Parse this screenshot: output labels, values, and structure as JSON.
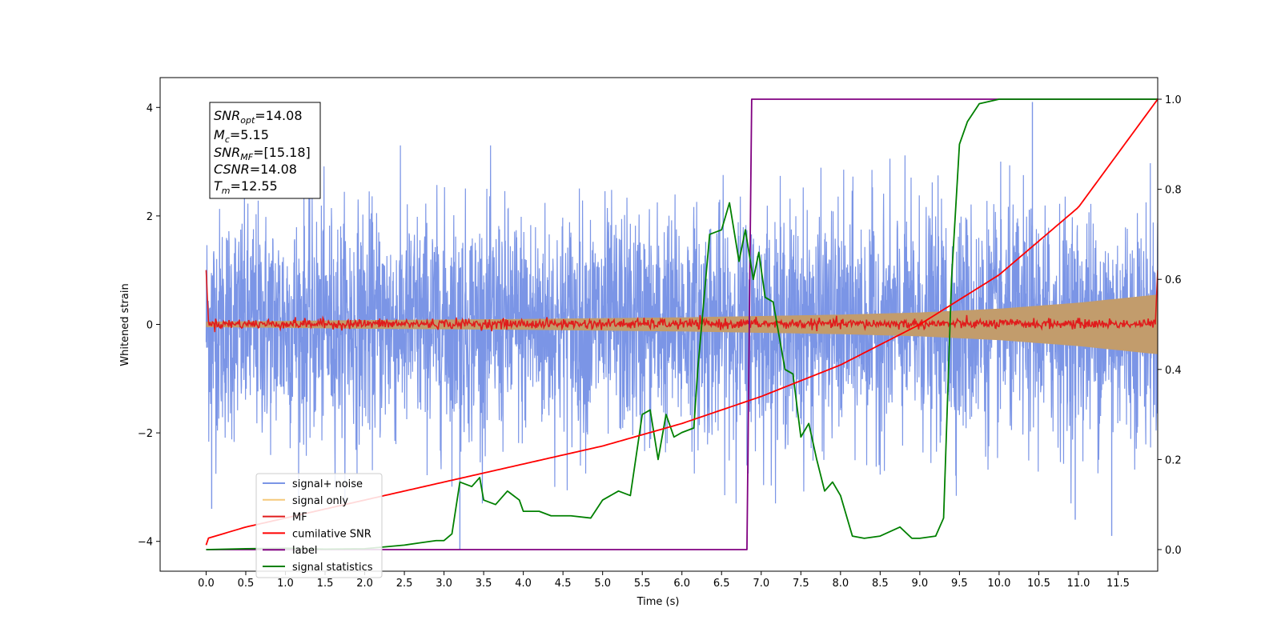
{
  "chart_data": {
    "type": "line",
    "xlabel": "Time (s)",
    "ylabel": "Whitened strain",
    "xlim": [
      -0.58,
      12.0
    ],
    "ylim_left": [
      -4.55,
      4.55
    ],
    "ylim_right": [
      -0.048,
      1.048
    ],
    "x_ticks": [
      0.0,
      0.5,
      1.0,
      1.5,
      2.0,
      2.5,
      3.0,
      3.5,
      4.0,
      4.5,
      5.0,
      5.5,
      6.0,
      6.5,
      7.0,
      7.5,
      8.0,
      8.5,
      9.0,
      9.5,
      10.0,
      10.5,
      11.0,
      11.5
    ],
    "x_tick_labels": [
      "0.0",
      "0.5",
      "1.0",
      "1.5",
      "2.0",
      "2.5",
      "3.0",
      "3.5",
      "4.0",
      "4.5",
      "5.0",
      "5.5",
      "6.0",
      "6.5",
      "7.0",
      "7.5",
      "8.0",
      "8.5",
      "9.0",
      "9.5",
      "10.0",
      "10.5",
      "11.0",
      "11.5"
    ],
    "y_ticks_left": [
      -4,
      -2,
      0,
      2,
      4
    ],
    "y_tick_labels_left": [
      "−4",
      "−2",
      "0",
      "2",
      "4"
    ],
    "y_ticks_right": [
      0.0,
      0.2,
      0.4,
      0.6,
      0.8,
      1.0
    ],
    "y_tick_labels_right": [
      "0.0",
      "0.2",
      "0.4",
      "0.6",
      "0.8",
      "1.0"
    ],
    "grid": false,
    "legend_position": "lower-left",
    "annotation": {
      "snr_opt": "14.08",
      "mc": "5.15",
      "snr_mf": "[15.18]",
      "csnr": "14.08",
      "tm": "12.55"
    },
    "series": [
      {
        "name": "signal+ noise",
        "axis": "left",
        "color": "#7b95e6",
        "description_of_values": "dense white noise, roughly ±2.5, occasional spikes to ~±3.5",
        "x_range": [
          0.0,
          12.0
        ],
        "amplitude_typical": 2.5,
        "notable_spikes": [
          [
            0.07,
            -3.4
          ],
          [
            3.2,
            -4.15
          ],
          [
            6.82,
            -2.6
          ],
          [
            10.42,
            4.1
          ],
          [
            10.96,
            -3.6
          ],
          [
            11.42,
            -3.9
          ]
        ]
      },
      {
        "name": "signal only",
        "axis": "left",
        "color": "#f5c97a",
        "description_of_values": "chirp envelope growing from ±0.05 at t=0 to ±0.55 at t=12",
        "envelope": [
          [
            0.0,
            0.05
          ],
          [
            2.0,
            0.08
          ],
          [
            4.0,
            0.1
          ],
          [
            6.0,
            0.13
          ],
          [
            8.0,
            0.18
          ],
          [
            9.0,
            0.22
          ],
          [
            10.0,
            0.29
          ],
          [
            11.0,
            0.4
          ],
          [
            12.0,
            0.55
          ]
        ]
      },
      {
        "name": "MF",
        "axis": "left",
        "color": "#e01c1c",
        "description_of_values": "matched filter output, near 0 with small noise, edges at 1.0",
        "values": [
          [
            0.0,
            1.0
          ],
          [
            0.03,
            0.05
          ],
          [
            1.0,
            0.05
          ],
          [
            3.0,
            0.0
          ],
          [
            5.0,
            0.02
          ],
          [
            7.0,
            0.0
          ],
          [
            9.0,
            0.03
          ],
          [
            11.0,
            0.0
          ],
          [
            11.97,
            0.0
          ],
          [
            12.0,
            1.0
          ]
        ]
      },
      {
        "name": "cumilative SNR",
        "axis": "right",
        "color": "#ff0000",
        "values": [
          [
            0.0,
            0.01
          ],
          [
            0.02,
            0.025
          ],
          [
            0.5,
            0.05
          ],
          [
            1.0,
            0.07
          ],
          [
            2.0,
            0.11
          ],
          [
            3.0,
            0.15
          ],
          [
            4.0,
            0.19
          ],
          [
            5.0,
            0.23
          ],
          [
            6.0,
            0.28
          ],
          [
            7.0,
            0.34
          ],
          [
            8.0,
            0.41
          ],
          [
            9.0,
            0.5
          ],
          [
            10.0,
            0.61
          ],
          [
            11.0,
            0.76
          ],
          [
            12.0,
            1.0
          ]
        ]
      },
      {
        "name": "label",
        "axis": "right",
        "color": "#800080",
        "values": [
          [
            0.0,
            0.0
          ],
          [
            6.82,
            0.0
          ],
          [
            6.88,
            1.0
          ],
          [
            12.0,
            1.0
          ]
        ]
      },
      {
        "name": "signal statistics",
        "axis": "right",
        "color": "#008000",
        "values": [
          [
            0.0,
            0.0
          ],
          [
            0.5,
            0.002
          ],
          [
            1.0,
            0.003
          ],
          [
            1.5,
            0.001
          ],
          [
            2.0,
            0.002
          ],
          [
            2.5,
            0.01
          ],
          [
            2.7,
            0.015
          ],
          [
            2.9,
            0.02
          ],
          [
            3.0,
            0.02
          ],
          [
            3.1,
            0.035
          ],
          [
            3.2,
            0.15
          ],
          [
            3.35,
            0.14
          ],
          [
            3.45,
            0.16
          ],
          [
            3.5,
            0.11
          ],
          [
            3.65,
            0.1
          ],
          [
            3.8,
            0.13
          ],
          [
            3.95,
            0.11
          ],
          [
            4.0,
            0.085
          ],
          [
            4.2,
            0.085
          ],
          [
            4.35,
            0.075
          ],
          [
            4.6,
            0.075
          ],
          [
            4.85,
            0.07
          ],
          [
            5.0,
            0.11
          ],
          [
            5.2,
            0.13
          ],
          [
            5.35,
            0.12
          ],
          [
            5.5,
            0.3
          ],
          [
            5.6,
            0.31
          ],
          [
            5.7,
            0.2
          ],
          [
            5.8,
            0.3
          ],
          [
            5.9,
            0.25
          ],
          [
            6.0,
            0.26
          ],
          [
            6.15,
            0.27
          ],
          [
            6.2,
            0.4
          ],
          [
            6.35,
            0.7
          ],
          [
            6.5,
            0.71
          ],
          [
            6.6,
            0.77
          ],
          [
            6.72,
            0.64
          ],
          [
            6.8,
            0.71
          ],
          [
            6.9,
            0.6
          ],
          [
            6.97,
            0.66
          ],
          [
            7.05,
            0.56
          ],
          [
            7.15,
            0.55
          ],
          [
            7.3,
            0.4
          ],
          [
            7.4,
            0.39
          ],
          [
            7.5,
            0.25
          ],
          [
            7.6,
            0.28
          ],
          [
            7.7,
            0.2
          ],
          [
            7.8,
            0.13
          ],
          [
            7.9,
            0.15
          ],
          [
            8.0,
            0.12
          ],
          [
            8.15,
            0.03
          ],
          [
            8.3,
            0.025
          ],
          [
            8.5,
            0.03
          ],
          [
            8.75,
            0.05
          ],
          [
            8.9,
            0.025
          ],
          [
            9.0,
            0.025
          ],
          [
            9.2,
            0.03
          ],
          [
            9.3,
            0.07
          ],
          [
            9.4,
            0.6
          ],
          [
            9.5,
            0.9
          ],
          [
            9.6,
            0.95
          ],
          [
            9.75,
            0.99
          ],
          [
            10.0,
            1.0
          ],
          [
            12.0,
            1.0
          ]
        ]
      }
    ]
  }
}
